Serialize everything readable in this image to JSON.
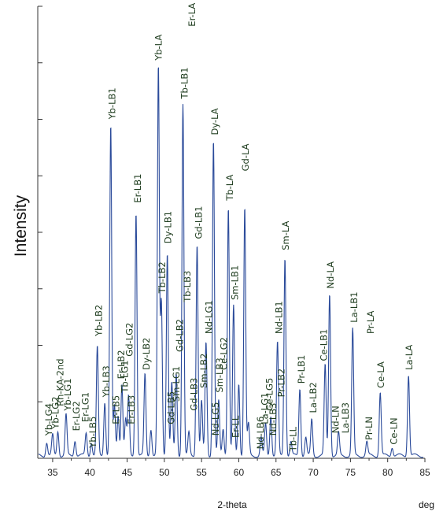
{
  "chart_data": {
    "type": "line",
    "title": "",
    "xlabel": "2-theta",
    "xunit": "deg",
    "ylabel": "Intensity",
    "xlim": [
      33,
      85
    ],
    "ylim": [
      0,
      1
    ],
    "x_ticks": [
      35,
      40,
      45,
      50,
      55,
      60,
      65,
      70,
      75,
      80,
      85
    ],
    "y_tick_count": 9,
    "line_color": "#2a4a9a",
    "label_color": "#1f3d1f",
    "grid": false,
    "legend": "none",
    "peaks": [
      {
        "x": 34.2,
        "y": 0.03
      },
      {
        "x": 35.0,
        "y": 0.045
      },
      {
        "x": 35.7,
        "y": 0.055
      },
      {
        "x": 36.8,
        "y": 0.09
      },
      {
        "x": 38.0,
        "y": 0.035
      },
      {
        "x": 39.5,
        "y": 0.05
      },
      {
        "x": 40.2,
        "y": 0.03
      },
      {
        "x": 41.0,
        "y": 0.24
      },
      {
        "x": 42.0,
        "y": 0.12
      },
      {
        "x": 42.8,
        "y": 0.73
      },
      {
        "x": 43.3,
        "y": 0.11
      },
      {
        "x": 43.8,
        "y": 0.09
      },
      {
        "x": 44.3,
        "y": 0.16
      },
      {
        "x": 44.8,
        "y": 0.08
      },
      {
        "x": 45.2,
        "y": 0.13
      },
      {
        "x": 46.2,
        "y": 0.54
      },
      {
        "x": 47.4,
        "y": 0.18
      },
      {
        "x": 48.2,
        "y": 0.06
      },
      {
        "x": 49.2,
        "y": 0.86
      },
      {
        "x": 49.6,
        "y": 0.34
      },
      {
        "x": 50.4,
        "y": 0.45
      },
      {
        "x": 51.0,
        "y": 0.16
      },
      {
        "x": 51.6,
        "y": 0.18
      },
      {
        "x": 52.5,
        "y": 0.78
      },
      {
        "x": 53.3,
        "y": 0.05
      },
      {
        "x": 54.4,
        "y": 0.47
      },
      {
        "x": 55.0,
        "y": 0.12
      },
      {
        "x": 55.6,
        "y": 0.25
      },
      {
        "x": 56.6,
        "y": 0.7
      },
      {
        "x": 57.3,
        "y": 0.12
      },
      {
        "x": 57.9,
        "y": 0.06
      },
      {
        "x": 58.6,
        "y": 0.55
      },
      {
        "x": 59.3,
        "y": 0.33
      },
      {
        "x": 60.0,
        "y": 0.16
      },
      {
        "x": 60.8,
        "y": 0.55
      },
      {
        "x": 61.3,
        "y": 0.07
      },
      {
        "x": 63.0,
        "y": 0.04
      },
      {
        "x": 63.6,
        "y": 0.07
      },
      {
        "x": 64.3,
        "y": 0.09
      },
      {
        "x": 65.2,
        "y": 0.25
      },
      {
        "x": 66.2,
        "y": 0.44
      },
      {
        "x": 67.0,
        "y": 0.03
      },
      {
        "x": 68.2,
        "y": 0.15
      },
      {
        "x": 69.0,
        "y": 0.04
      },
      {
        "x": 69.8,
        "y": 0.08
      },
      {
        "x": 71.6,
        "y": 0.2
      },
      {
        "x": 72.2,
        "y": 0.36
      },
      {
        "x": 73.4,
        "y": 0.05
      },
      {
        "x": 75.3,
        "y": 0.28
      },
      {
        "x": 77.2,
        "y": 0.03
      },
      {
        "x": 79.0,
        "y": 0.14
      },
      {
        "x": 80.6,
        "y": 0.02
      },
      {
        "x": 82.8,
        "y": 0.18
      }
    ],
    "annotations": [
      {
        "text": "Yb-LG4",
        "x": 34.5,
        "y": 0.045
      },
      {
        "text": "Yb-LG2",
        "x": 35.4,
        "y": 0.06
      },
      {
        "text": "Rh-KA-2nd",
        "x": 36.0,
        "y": 0.11
      },
      {
        "text": "Yb-LG1",
        "x": 37.0,
        "y": 0.1
      },
      {
        "text": "Er-LG2",
        "x": 38.2,
        "y": 0.055
      },
      {
        "text": "Er-LG1",
        "x": 39.4,
        "y": 0.075
      },
      {
        "text": "Yb-LB5",
        "x": 40.4,
        "y": 0.018
      },
      {
        "text": "Yb-LB2",
        "x": 41.2,
        "y": 0.265
      },
      {
        "text": "Yb-LB3",
        "x": 42.2,
        "y": 0.13
      },
      {
        "text": "Yb-LB1",
        "x": 43.0,
        "y": 0.745
      },
      {
        "text": "Er-LB5",
        "x": 43.5,
        "y": 0.07
      },
      {
        "text": "Er-LB2",
        "x": 44.2,
        "y": 0.17
      },
      {
        "text": "Tb-LG1",
        "x": 44.7,
        "y": 0.14
      },
      {
        "text": "Er-LB3",
        "x": 45.6,
        "y": 0.07
      },
      {
        "text": "Gd-LG2",
        "x": 45.3,
        "y": 0.22
      },
      {
        "text": "Er-LB1",
        "x": 46.4,
        "y": 0.56
      },
      {
        "text": "Dy-LB2",
        "x": 47.6,
        "y": 0.19
      },
      {
        "text": "Tb-LB2",
        "x": 49.7,
        "y": 0.36
      },
      {
        "text": "Yb-LA",
        "x": 49.2,
        "y": 0.875
      },
      {
        "text": "Dy-LB1",
        "x": 50.5,
        "y": 0.47
      },
      {
        "text": "Gd-LB5",
        "x": 50.9,
        "y": 0.07
      },
      {
        "text": "Sm-LG1",
        "x": 51.6,
        "y": 0.12
      },
      {
        "text": "Gd-LB2",
        "x": 52.1,
        "y": 0.23
      },
      {
        "text": "Tb-LB3",
        "x": 53.1,
        "y": 0.34
      },
      {
        "text": "Tb-LB1",
        "x": 52.7,
        "y": 0.79
      },
      {
        "text": "Er-LA",
        "x": 53.7,
        "y": 0.95
      },
      {
        "text": "Gd-LB3",
        "x": 54.0,
        "y": 0.1
      },
      {
        "text": "Gd-LB1",
        "x": 54.6,
        "y": 0.48
      },
      {
        "text": "Sm-LB2",
        "x": 55.3,
        "y": 0.15
      },
      {
        "text": "Nd-LG1",
        "x": 56.0,
        "y": 0.27
      },
      {
        "text": "Nd-LG5",
        "x": 56.9,
        "y": 0.045
      },
      {
        "text": "Dy-LA",
        "x": 56.8,
        "y": 0.71
      },
      {
        "text": "Sm-LB3",
        "x": 57.4,
        "y": 0.14
      },
      {
        "text": "Ce-LG2",
        "x": 58.0,
        "y": 0.19
      },
      {
        "text": "Er-LL",
        "x": 59.6,
        "y": 0.04
      },
      {
        "text": "Sm-LB1",
        "x": 59.5,
        "y": 0.345
      },
      {
        "text": "Tb-LA",
        "x": 58.8,
        "y": 0.565
      },
      {
        "text": "Gd-LA",
        "x": 60.9,
        "y": 0.63
      },
      {
        "text": "Nd-LB6",
        "x": 62.9,
        "y": 0.015
      },
      {
        "text": "La-LG1",
        "x": 63.5,
        "y": 0.07
      },
      {
        "text": "Ce-LG5",
        "x": 64.1,
        "y": 0.1
      },
      {
        "text": "Nd-LB3",
        "x": 64.6,
        "y": 0.045
      },
      {
        "text": "Pr-LB2",
        "x": 65.7,
        "y": 0.13
      },
      {
        "text": "Nd-LB1",
        "x": 65.4,
        "y": 0.27
      },
      {
        "text": "Sm-LA",
        "x": 66.3,
        "y": 0.455
      },
      {
        "text": "Tb-LL",
        "x": 67.3,
        "y": 0.01
      },
      {
        "text": "Pr-LB1",
        "x": 68.4,
        "y": 0.16
      },
      {
        "text": "La-LB2",
        "x": 70.0,
        "y": 0.095
      },
      {
        "text": "Ce-LB1",
        "x": 71.4,
        "y": 0.21
      },
      {
        "text": "Nd-LA",
        "x": 72.3,
        "y": 0.37
      },
      {
        "text": "Nd-LN",
        "x": 73.0,
        "y": 0.05
      },
      {
        "text": "La-LB3",
        "x": 74.3,
        "y": 0.05
      },
      {
        "text": "La-LB1",
        "x": 75.5,
        "y": 0.295
      },
      {
        "text": "Pr-LA",
        "x": 77.7,
        "y": 0.27
      },
      {
        "text": "Pr-LN",
        "x": 77.5,
        "y": 0.035
      },
      {
        "text": "Ce-LA",
        "x": 79.1,
        "y": 0.15
      },
      {
        "text": "Ce-LN",
        "x": 80.8,
        "y": 0.025
      },
      {
        "text": "La-LA",
        "x": 82.9,
        "y": 0.19
      }
    ]
  }
}
